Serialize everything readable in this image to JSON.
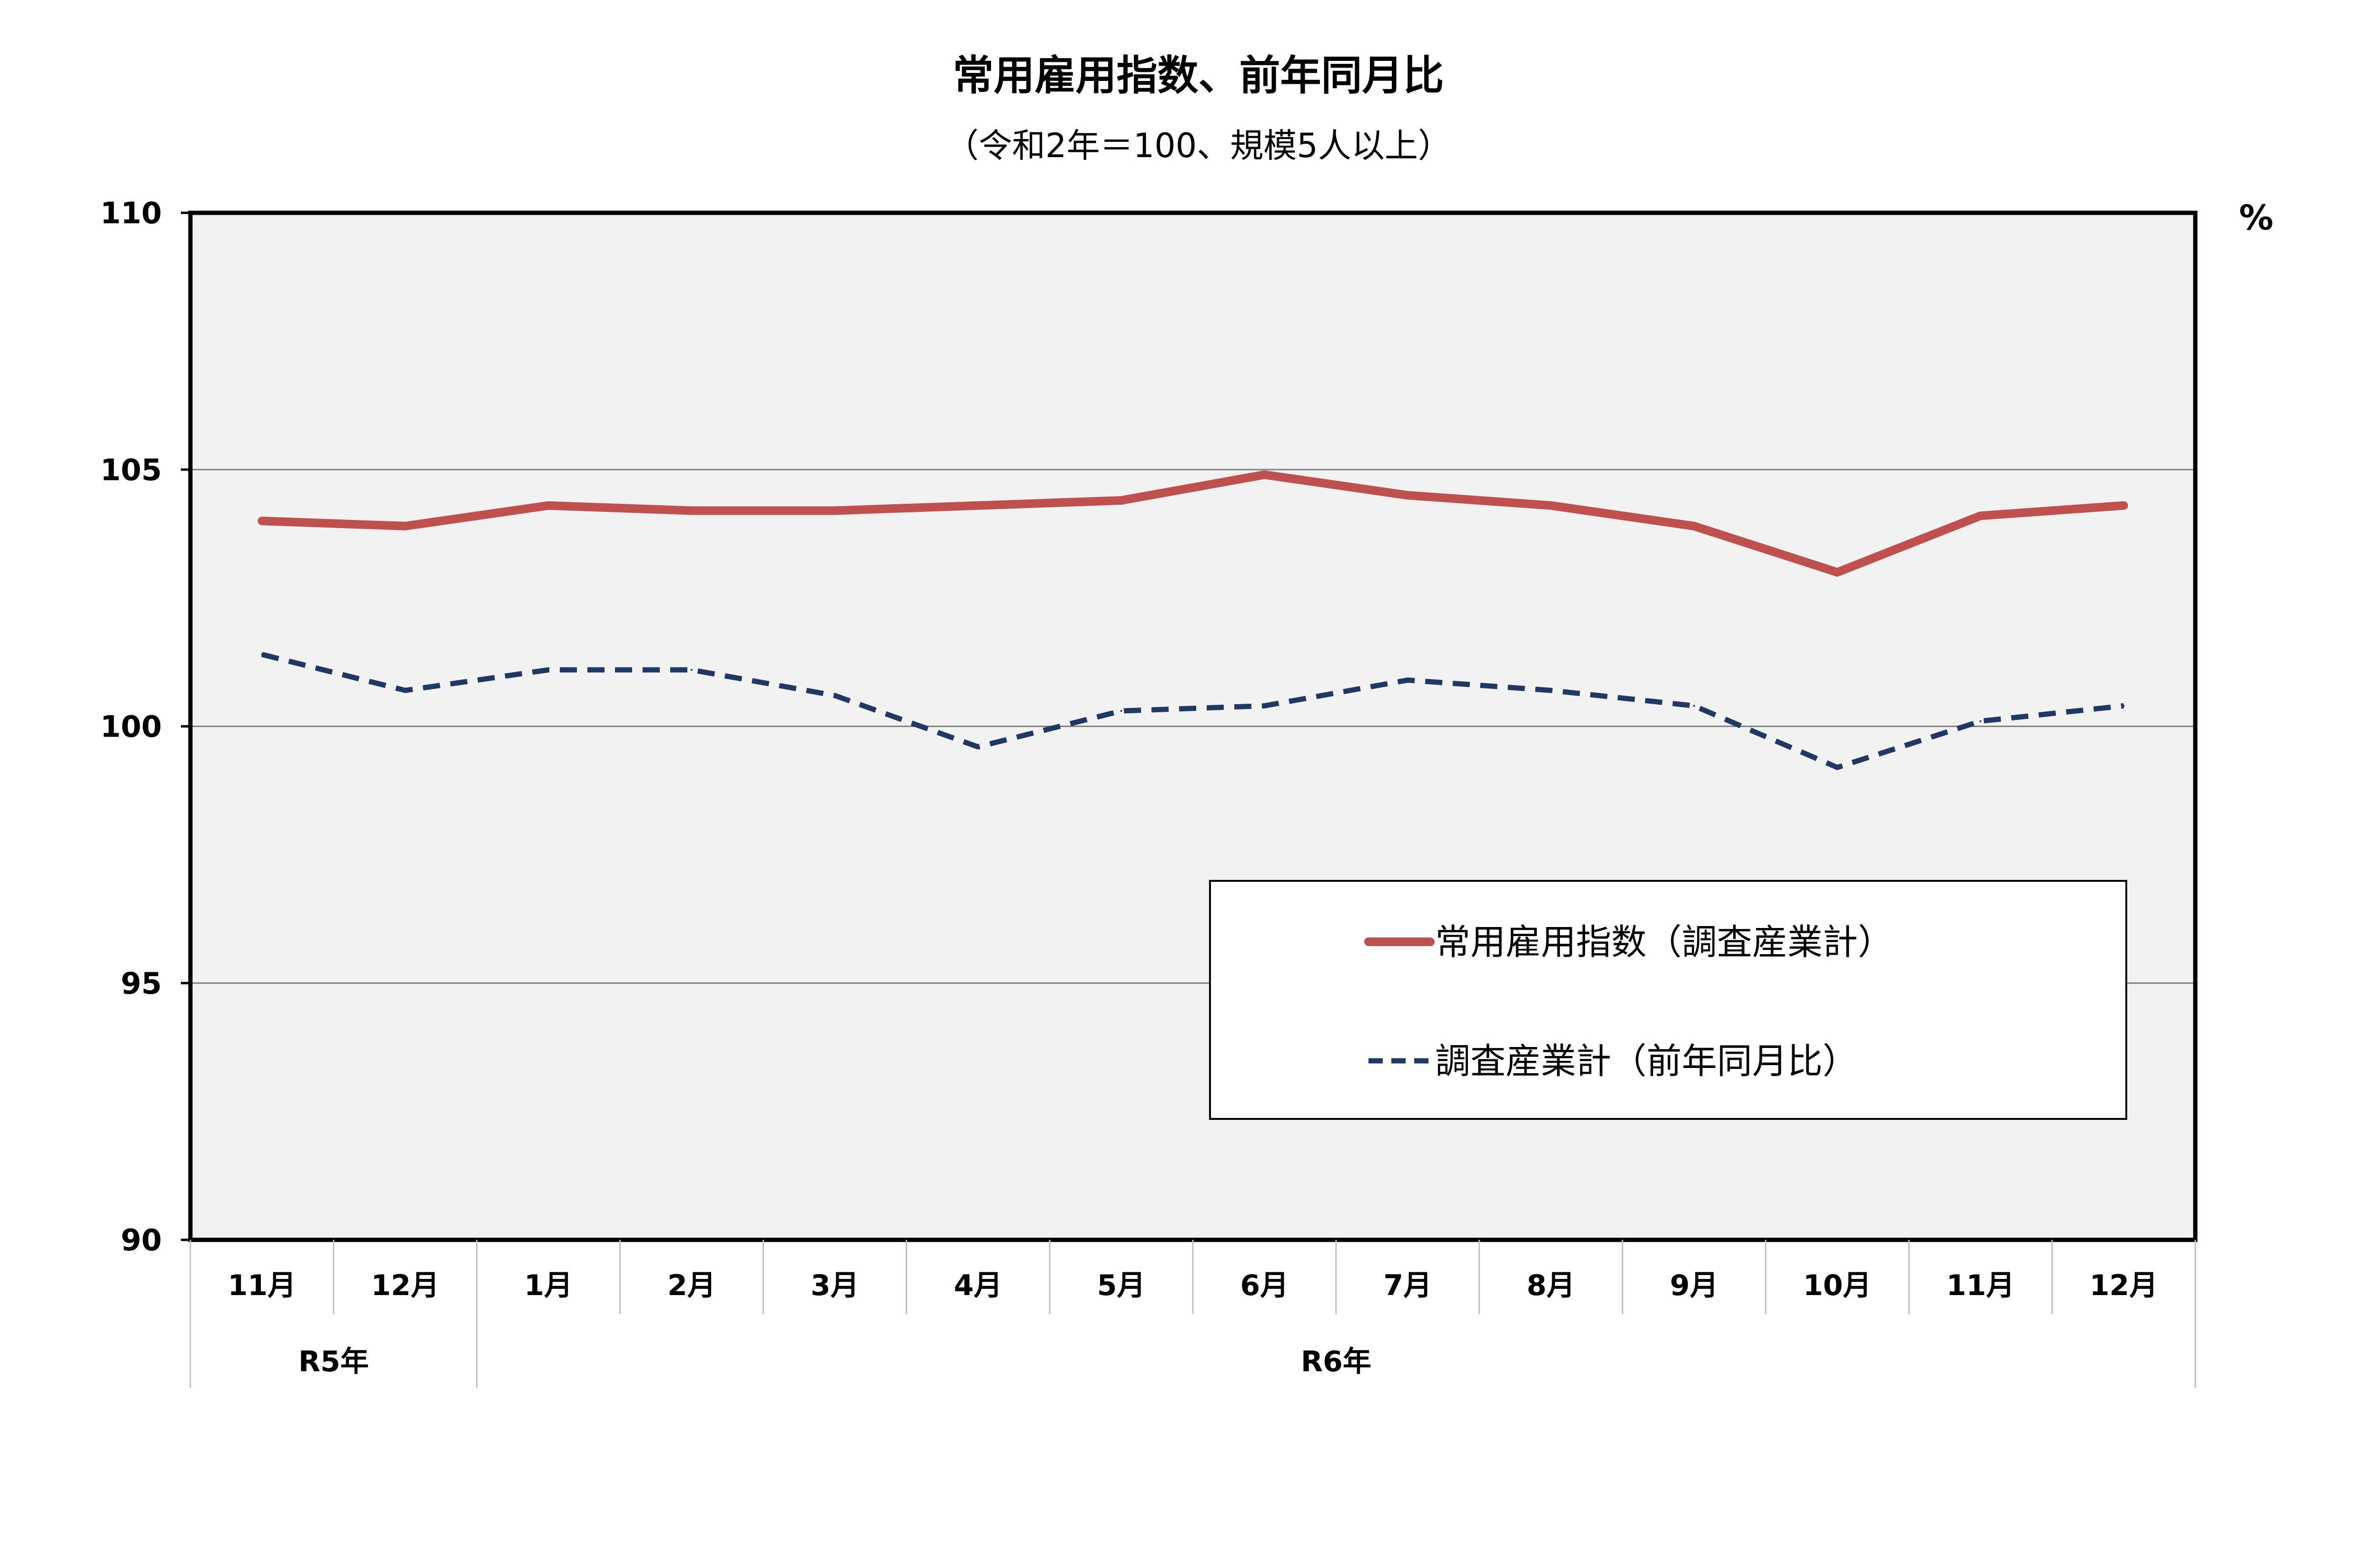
{
  "chart_data": {
    "type": "line",
    "title": "常用雇用指数、前年同月比",
    "subtitle": "（令和2年＝100、規模5人以上）",
    "unit": "%",
    "ylim": [
      90,
      110
    ],
    "yticks": [
      "90",
      "95",
      "100",
      "105",
      "110"
    ],
    "grid": true,
    "legend_position": "lower-right",
    "categories": [
      "11月",
      "12月",
      "1月",
      "2月",
      "3月",
      "4月",
      "5月",
      "6月",
      "7月",
      "8月",
      "9月",
      "10月",
      "11月",
      "12月"
    ],
    "year_groups": [
      {
        "label": "R5年",
        "span": 2
      },
      {
        "label": "R6年",
        "span": 12
      }
    ],
    "series": [
      {
        "name": "常用雇用指数（調査産業計）",
        "color": "#c0504d",
        "style": "solid",
        "values": [
          104.0,
          103.9,
          104.3,
          104.2,
          104.2,
          104.3,
          104.4,
          104.9,
          104.5,
          104.3,
          103.9,
          103.0,
          104.1,
          104.3
        ]
      },
      {
        "name": "調査産業計（前年同月比）",
        "color": "#1f3864",
        "style": "dashed",
        "values": [
          101.4,
          100.7,
          101.1,
          101.1,
          100.6,
          99.6,
          100.3,
          100.4,
          100.9,
          100.7,
          100.4,
          99.2,
          100.1,
          100.4
        ]
      }
    ],
    "colors": {
      "plot_background": "#f2f2f2",
      "gridline": "#808080",
      "axis": "#000000"
    }
  }
}
